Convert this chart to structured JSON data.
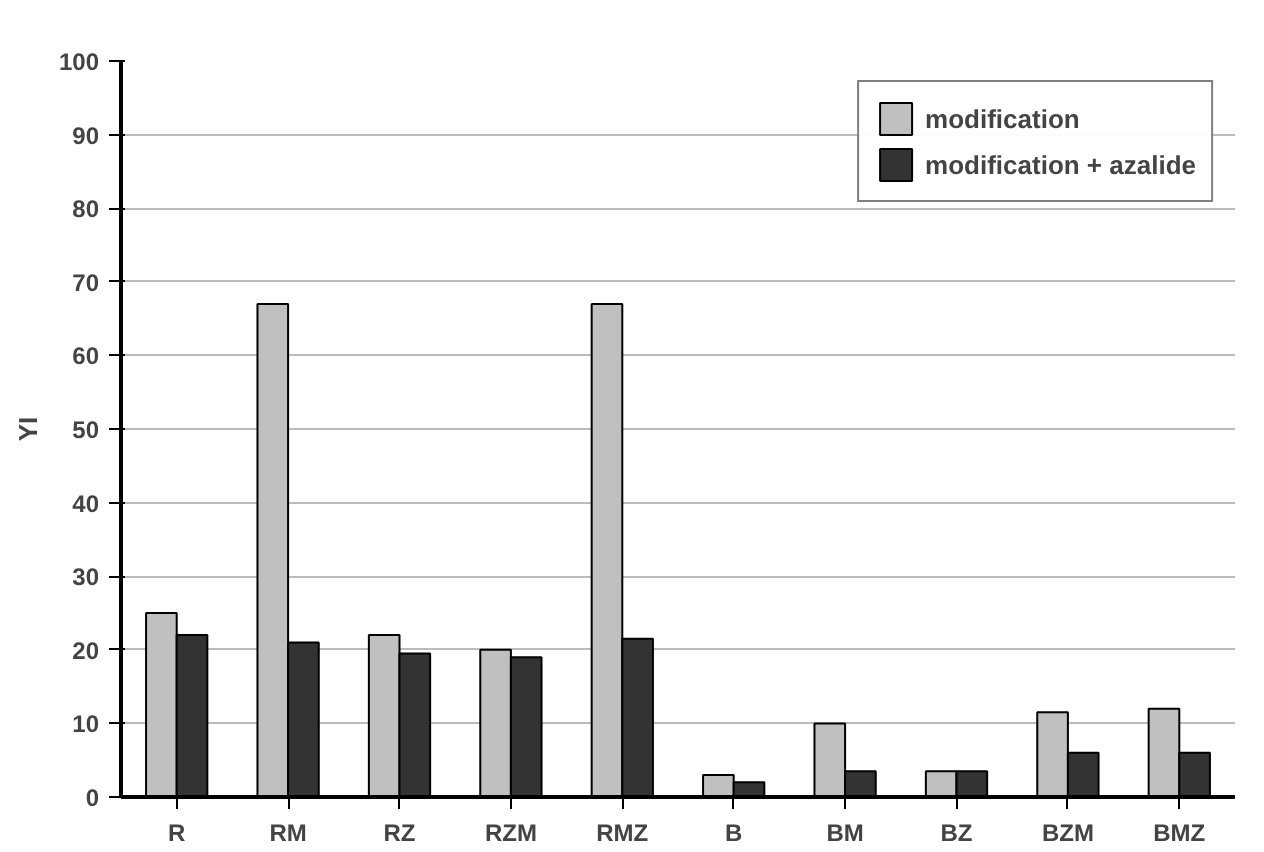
{
  "chart_data": {
    "type": "bar",
    "ylabel": "YI",
    "categories": [
      "R",
      "RM",
      "RZ",
      "RZM",
      "RMZ",
      "B",
      "BM",
      "BZ",
      "BZM",
      "BMZ"
    ],
    "series": [
      {
        "name": "modification",
        "color": "#c0c0c0",
        "values": [
          25,
          67,
          22,
          20,
          67,
          3,
          10,
          3.5,
          11.5,
          12
        ]
      },
      {
        "name": "modification + azalide",
        "color": "#333333",
        "values": [
          22,
          21,
          19.5,
          19,
          21.5,
          2,
          3.5,
          3.5,
          6,
          6
        ]
      }
    ],
    "ylim": [
      0,
      100
    ],
    "yticks": [
      0,
      10,
      20,
      30,
      40,
      50,
      60,
      70,
      80,
      90,
      100
    ],
    "grid": "y",
    "legend": "top right"
  }
}
